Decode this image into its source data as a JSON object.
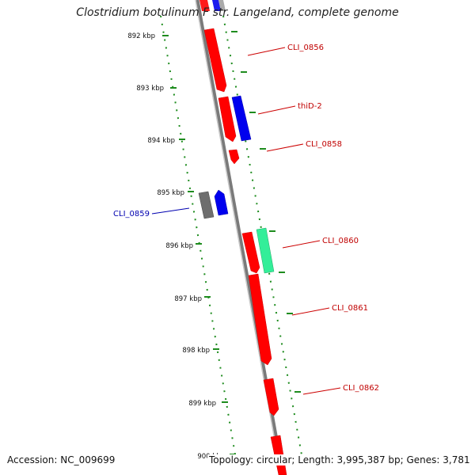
{
  "title": "Clostridium botulinum F str. Langeland, complete genome",
  "footer": {
    "accession": "Accession: NC_009699",
    "topology": "Topology: circular; Length: 3,995,387 bp; Genes: 3,781"
  },
  "colors": {
    "backbone": "#8c8c8c",
    "tick_track": "#1e8c1e",
    "forward_strand_gene": "#ff0000",
    "blue_gene": "#0000e6",
    "grey_gene": "#6e6e6e",
    "green_gene": "#33ee99",
    "forward_label": "#c00000",
    "reverse_label": "#0000b0"
  },
  "kbp_ticks": [
    "892 kbp",
    "893 kbp",
    "894 kbp",
    "895 kbp",
    "896 kbp",
    "897 kbp",
    "898 kbp",
    "899 kbp",
    "900 kbp"
  ],
  "gene_labels": [
    {
      "text": "CLI_0856",
      "strand": "forward"
    },
    {
      "text": "thiD-2",
      "strand": "forward"
    },
    {
      "text": "CLI_0858",
      "strand": "forward"
    },
    {
      "text": "CLI_0859",
      "strand": "reverse"
    },
    {
      "text": "CLI_0860",
      "strand": "forward"
    },
    {
      "text": "CLI_0861",
      "strand": "forward"
    },
    {
      "text": "CLI_0862",
      "strand": "forward"
    }
  ]
}
